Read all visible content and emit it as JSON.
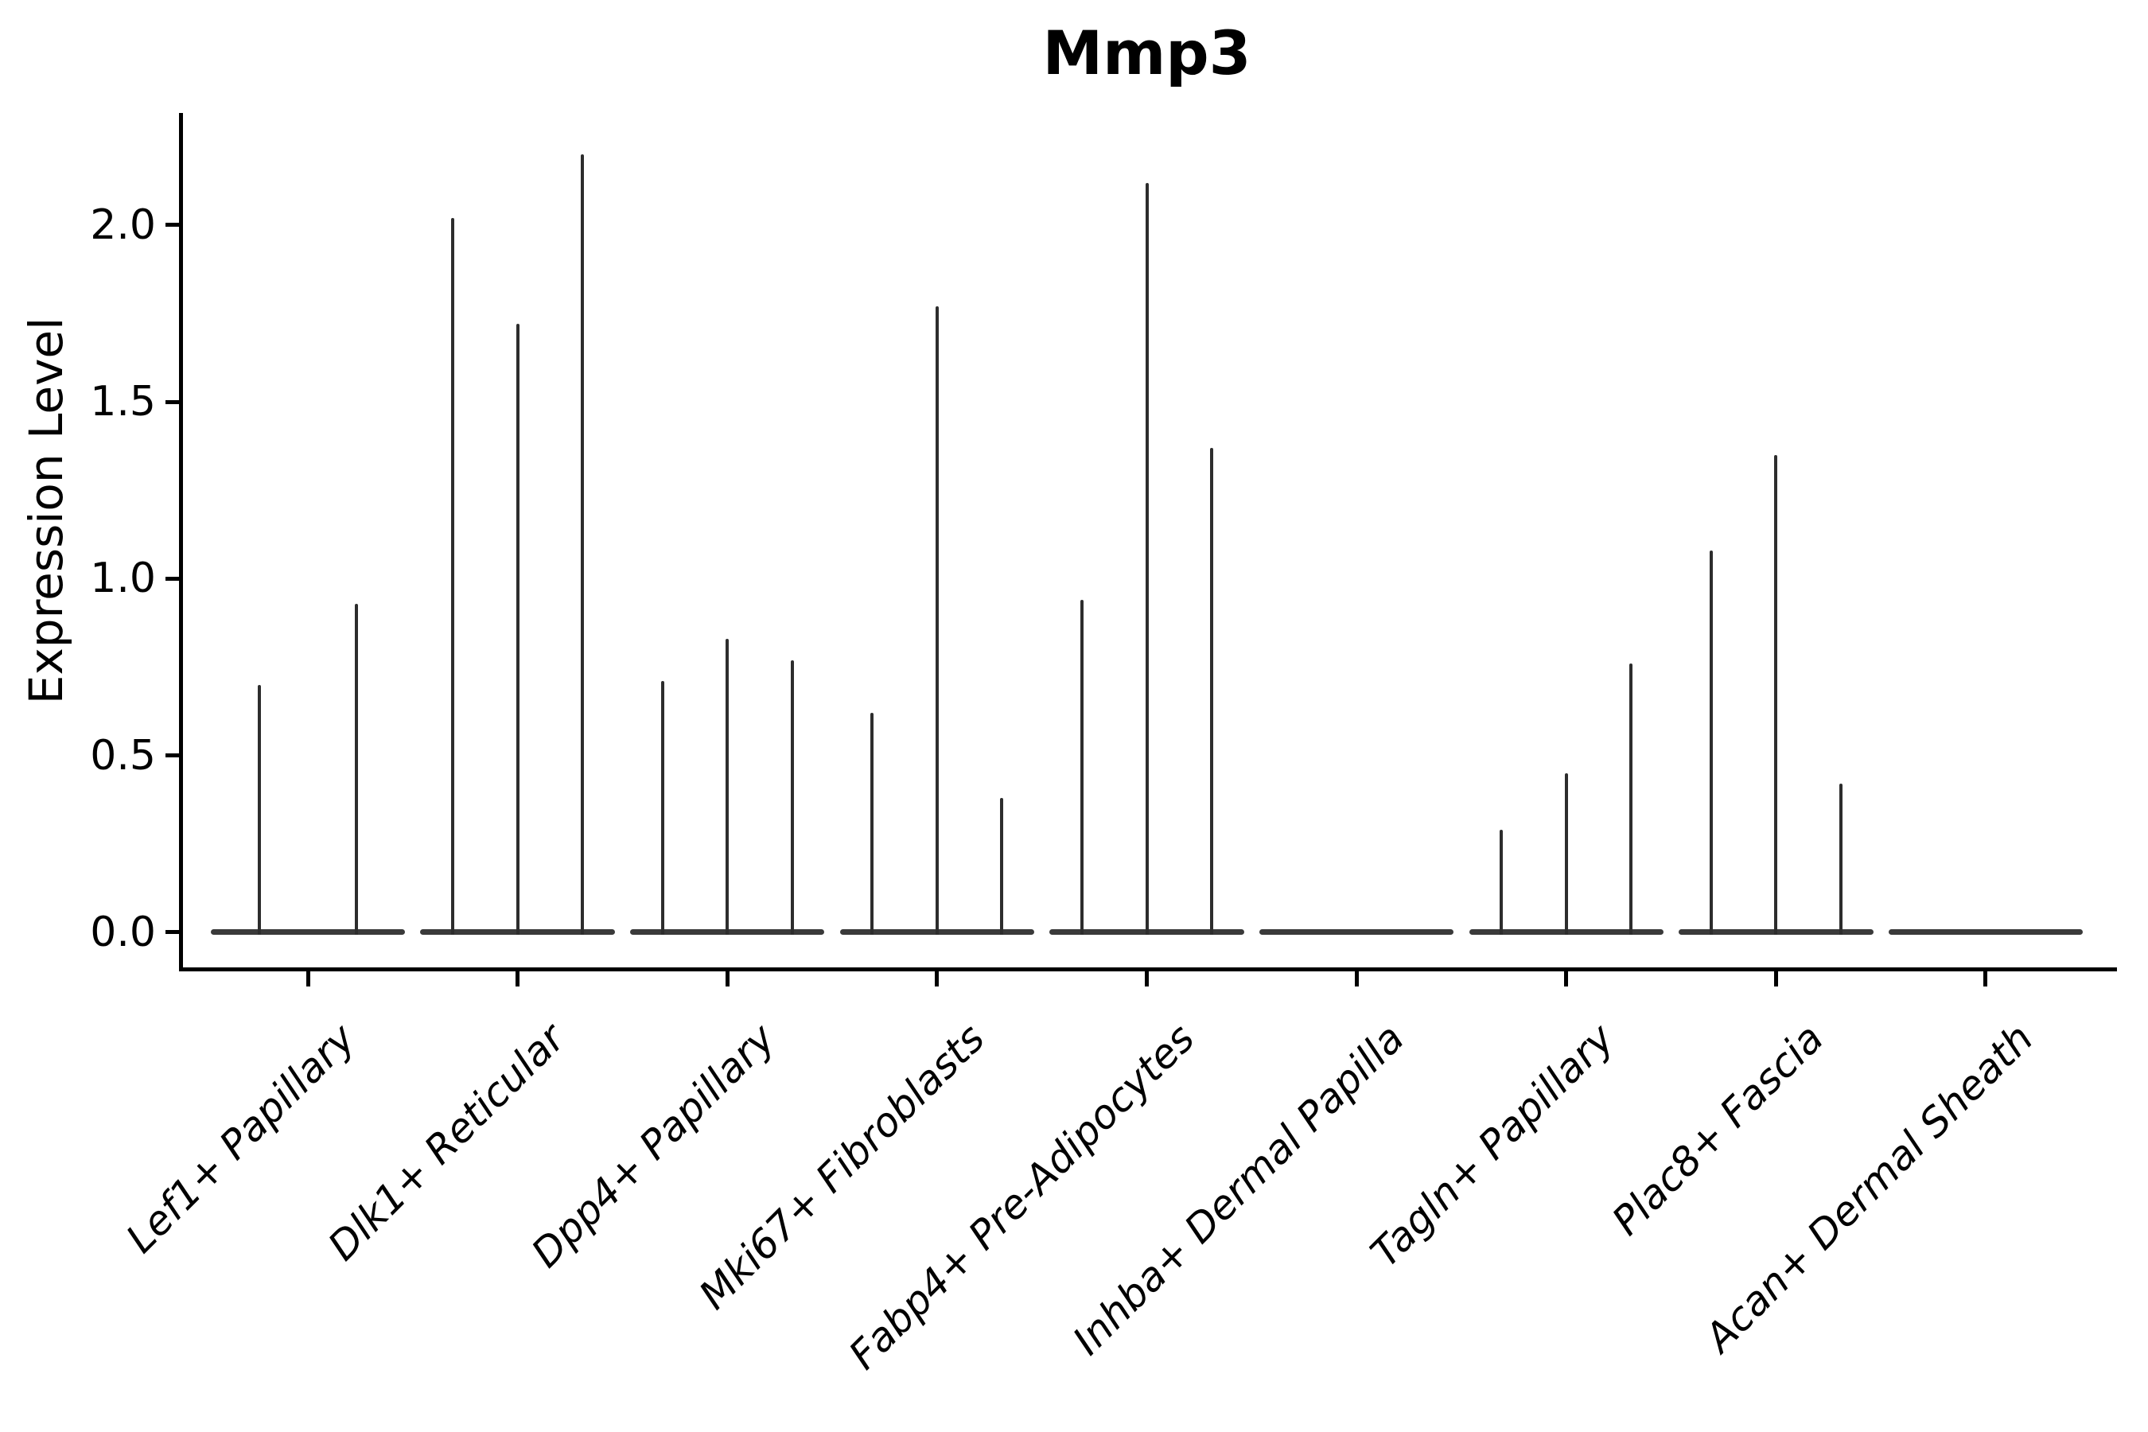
{
  "figure": {
    "title": "Mmp3"
  },
  "y_axis": {
    "label": "Expression Level",
    "tick_labels": [
      "0.0",
      "0.5",
      "1.0",
      "1.5",
      "2.0"
    ]
  },
  "x_axis": {
    "tick_labels": [
      "Lef1+ Papillary",
      "Dlk1+ Reticular",
      "Dpp4+ Papillary",
      "Mki67+ Fibroblasts",
      "Fabp4+ Pre-Adipocytes",
      "Inhba+ Dermal Papilla",
      "Tagln+ Papillary",
      "Plac8+ Fascia",
      "Acan+ Dermal Sheath"
    ]
  },
  "chart_data": {
    "type": "violin",
    "title": "Mmp3",
    "xlabel": "",
    "ylabel": "Expression Level",
    "categories": [
      "Lef1+ Papillary",
      "Dlk1+ Reticular",
      "Dpp4+ Papillary",
      "Mki67+ Fibroblasts",
      "Fabp4+ Pre-Adipocytes",
      "Inhba+ Dermal Papilla",
      "Tagln+ Papillary",
      "Plac8+ Fascia",
      "Acan+ Dermal Sheath"
    ],
    "violin_spike_maxima": [
      [
        0.7,
        0.93
      ],
      [
        2.02,
        1.72,
        2.2
      ],
      [
        0.71,
        0.83,
        0.77
      ],
      [
        0.62,
        1.77,
        0.38
      ],
      [
        0.94,
        2.12,
        1.37
      ],
      [
        0.0,
        0.0,
        0.0
      ],
      [
        0.29,
        0.45,
        0.76
      ],
      [
        1.08,
        1.35,
        0.42
      ],
      [
        0.0,
        0.0,
        0.0
      ]
    ],
    "distribution_note": "each violin is a near-zero-width spike: mass concentrated at 0 with a thin tail up to the listed maximum",
    "yticks": [
      0.0,
      0.5,
      1.0,
      1.5,
      2.0
    ],
    "ylim": [
      -0.099,
      2.317
    ],
    "xlim": [
      -0.607,
      8.607
    ],
    "grid": false,
    "legend": null,
    "colors": {
      "spike": "#2d2d2d",
      "baseline": "#3a3a3a",
      "axis": "#000000",
      "text": "#000000",
      "background": "#ffffff"
    }
  }
}
